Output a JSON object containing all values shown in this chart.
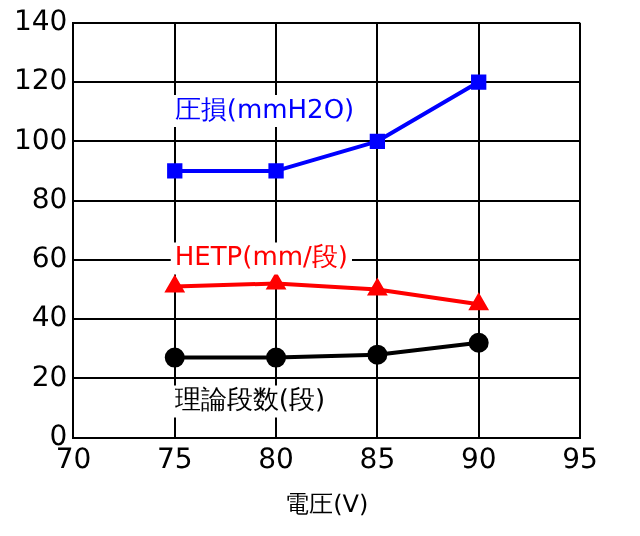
{
  "chart_data": {
    "type": "line",
    "xlabel": "電圧(V)",
    "x": [
      75,
      80,
      85,
      90
    ],
    "xlim": [
      70,
      95
    ],
    "xticks": [
      70,
      75,
      80,
      85,
      90,
      95
    ],
    "ylim": [
      0,
      140
    ],
    "yticks": [
      0,
      20,
      40,
      60,
      80,
      100,
      120,
      140
    ],
    "grid": true,
    "legend": false,
    "series": [
      {
        "name": "圧損(mmH2O)",
        "color": "#0000ff",
        "marker": "square",
        "values": [
          90,
          90,
          100,
          120
        ]
      },
      {
        "name": "HETP(mm/段)",
        "color": "#ff0000",
        "marker": "triangle",
        "values": [
          51,
          52,
          50,
          45
        ]
      },
      {
        "name": "理論段数(段)",
        "color": "#000000",
        "marker": "circle",
        "values": [
          27,
          27,
          28,
          32
        ]
      }
    ]
  }
}
